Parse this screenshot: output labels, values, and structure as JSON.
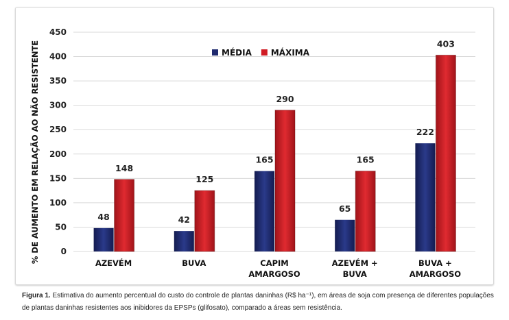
{
  "chart_data": {
    "type": "bar",
    "categories": [
      [
        "AZEVÉM"
      ],
      [
        "BUVA"
      ],
      [
        "CAPIM",
        "AMARGOSO"
      ],
      [
        "AZEVÉM +",
        "BUVA"
      ],
      [
        "BUVA +",
        "AMARGOSO"
      ]
    ],
    "series": [
      {
        "name": "MÉDIA",
        "values": [
          48,
          42,
          165,
          65,
          222
        ],
        "color": "#1f2a6e"
      },
      {
        "name": "MÁXIMA",
        "values": [
          148,
          125,
          290,
          165,
          403
        ],
        "color": "#d01c24"
      }
    ],
    "ylabel": "% DE AUMENTO EM RELAÇÃO AO NÃO RESISTENTE",
    "ylim": [
      0,
      450
    ],
    "yticks": [
      0,
      50,
      100,
      150,
      200,
      250,
      300,
      350,
      400,
      450
    ],
    "grid": true,
    "legend": "top-center"
  },
  "caption": {
    "label": "Figura 1.",
    "text": " Estimativa do aumento percentual do custo do controle de plantas daninhas (R$ ha⁻¹), em áreas de soja com presença de diferentes populações de plantas daninhas resistentes aos inibidores da EPSPs (glifosato), comparado a áreas sem resistência."
  }
}
